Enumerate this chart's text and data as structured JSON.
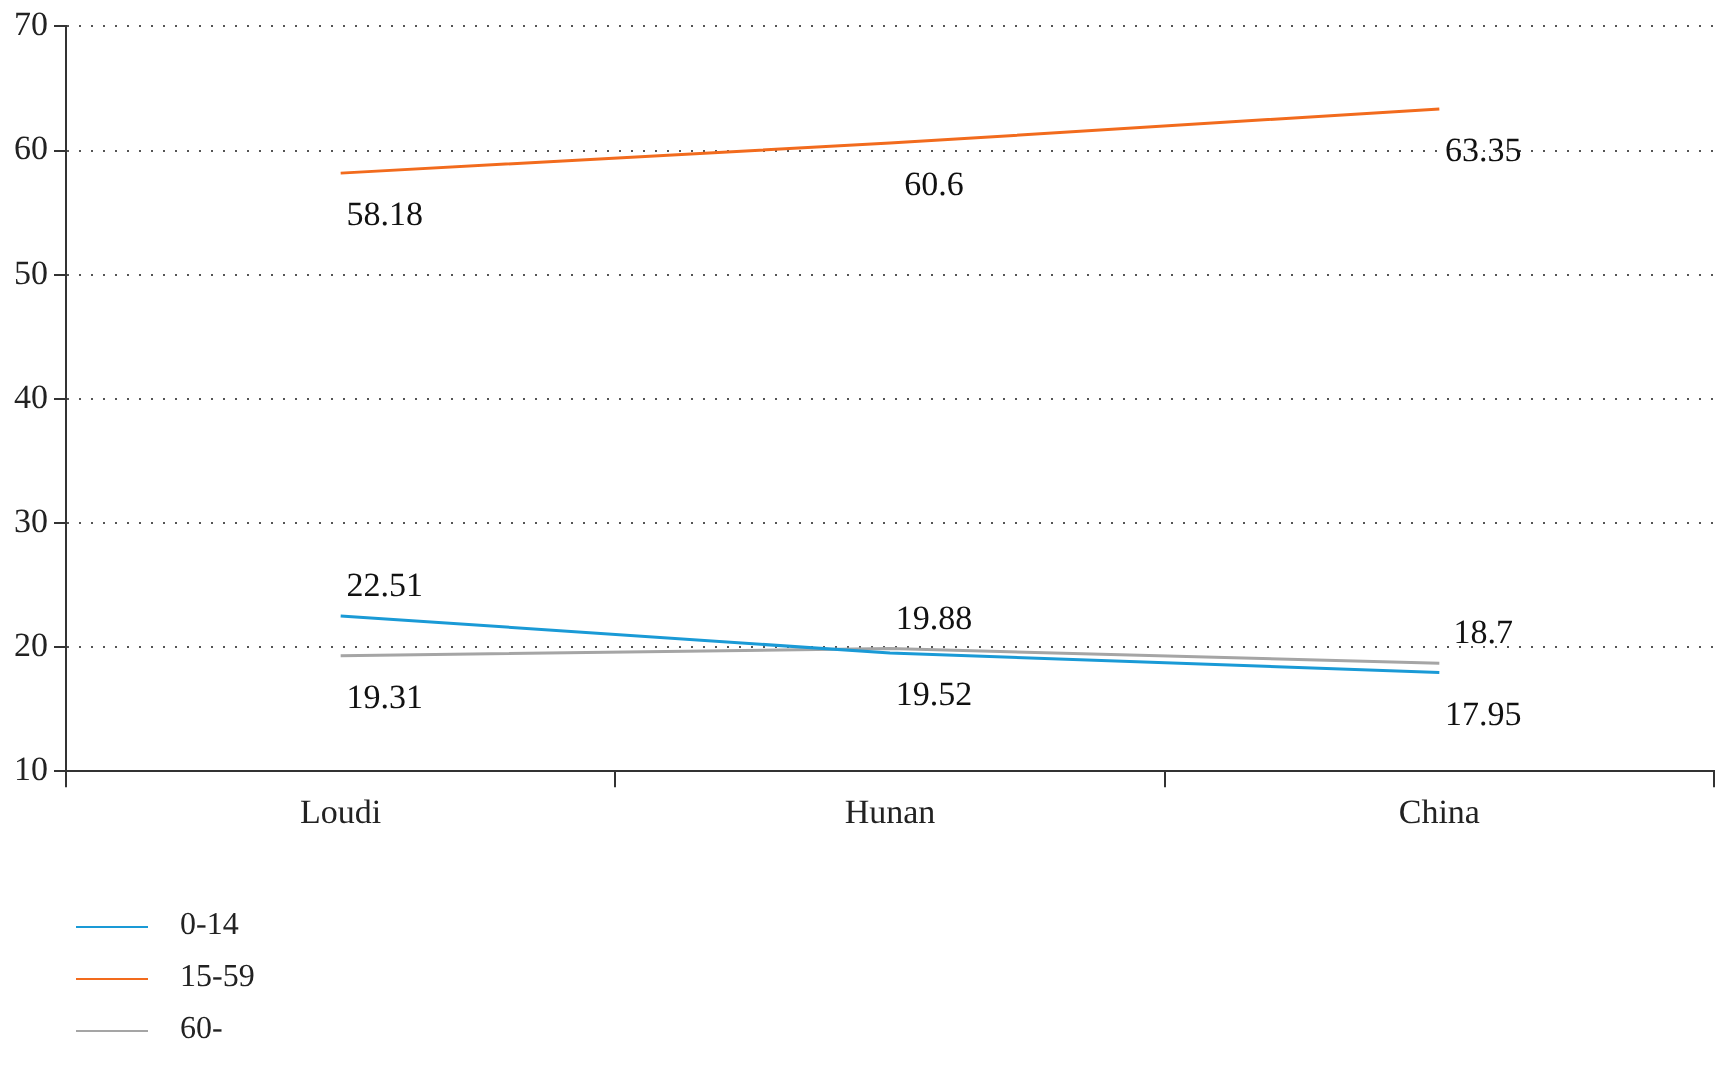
{
  "chart_data": {
    "type": "line",
    "categories": [
      "Loudi",
      "Hunan",
      "China"
    ],
    "series": [
      {
        "name": "0-14",
        "color": "#1a9ad6",
        "values": [
          22.51,
          19.52,
          17.95
        ]
      },
      {
        "name": "15-59",
        "color": "#f26b1d",
        "values": [
          58.18,
          60.6,
          63.35
        ]
      },
      {
        "name": "60-",
        "color": "#a5a5a5",
        "values": [
          19.31,
          19.88,
          18.7
        ]
      }
    ],
    "ylim": [
      10,
      70
    ],
    "yticks": [
      10,
      20,
      30,
      40,
      50,
      60,
      70
    ],
    "grid": "y",
    "legend": "bottom left",
    "data_labels": true,
    "marker": "none",
    "line_style": "solid"
  }
}
